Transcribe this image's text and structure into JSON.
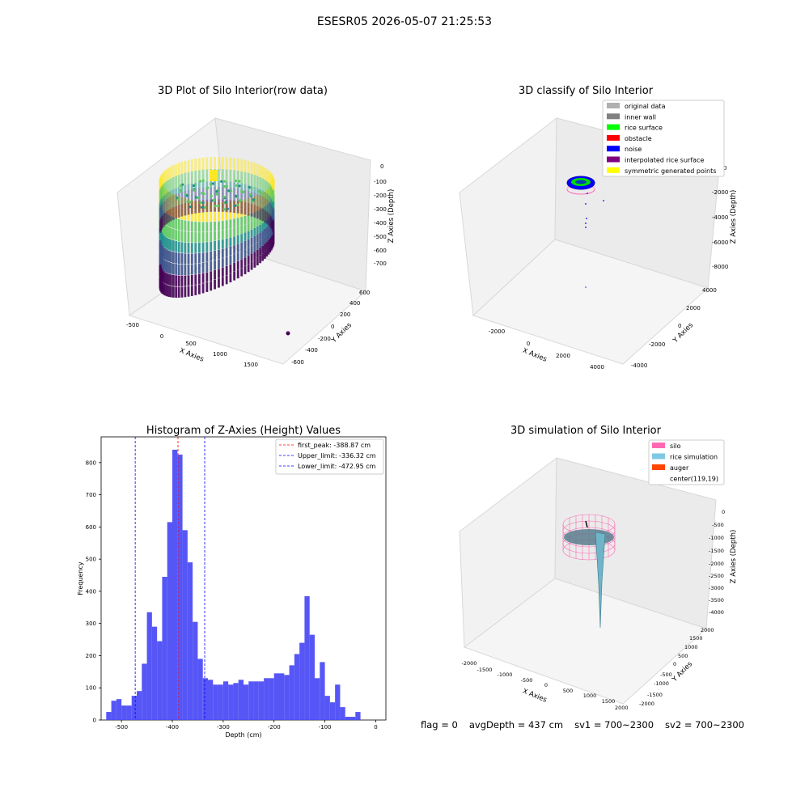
{
  "figure_title": "ESESR05 2026-05-07 21:25:53",
  "footer": {
    "flag": "flag = 0",
    "avg_depth": "avgDepth = 437 cm",
    "sv1": "sv1 = 700~2300",
    "sv2": "sv2 = 700~2300"
  },
  "panel1": {
    "title": "3D Plot of Silo Interior(row data)",
    "xlabel": "X Axies",
    "ylabel": "Y Axies",
    "zlabel": "Z Axies (Depth)",
    "x_ticks": [
      "-500",
      "0",
      "500",
      "1000",
      "1500"
    ],
    "y_ticks": [
      "-600",
      "-400",
      "-200",
      "0",
      "200",
      "400",
      "600"
    ],
    "z_ticks": [
      "0",
      "-100",
      "-200",
      "-300",
      "-400",
      "-500",
      "-600",
      "-700"
    ],
    "colormap": [
      "#440154",
      "#3b528b",
      "#21918c",
      "#5ec962",
      "#fde725"
    ]
  },
  "panel2": {
    "title": "3D classify of Silo Interior",
    "xlabel": "X Axies",
    "ylabel": "Y Axies",
    "zlabel": "Z Axies (Depth)",
    "x_ticks": [
      "-2000",
      "0",
      "2000",
      "4000"
    ],
    "y_ticks": [
      "-4000",
      "-2000",
      "0",
      "2000",
      "4000"
    ],
    "z_ticks": [
      "0",
      "-2000",
      "-4000",
      "-6000",
      "-8000"
    ],
    "legend": [
      {
        "label": "original data",
        "color": "#b0b0b0"
      },
      {
        "label": "inner wall",
        "color": "#808080"
      },
      {
        "label": "rice surface",
        "color": "#00ff00"
      },
      {
        "label": "obstacle",
        "color": "#ff0000"
      },
      {
        "label": "noise",
        "color": "#0000ff"
      },
      {
        "label": "interpolated rice surface",
        "color": "#800080"
      },
      {
        "label": "symmetric generated points",
        "color": "#ffff00"
      }
    ]
  },
  "panel4": {
    "title": "3D simulation of Silo Interior",
    "xlabel": "X Axies",
    "ylabel": "Y Axies",
    "zlabel": "Z Axies (Depth)",
    "x_ticks": [
      "-2000",
      "-1500",
      "-1000",
      "-500",
      "0",
      "500",
      "1000",
      "1500",
      "2000"
    ],
    "y_ticks": [
      "-2000",
      "-1500",
      "-1000",
      "-500",
      "0",
      "500",
      "1000",
      "1500",
      "2000"
    ],
    "z_ticks": [
      "0",
      "-500",
      "-1000",
      "-1500",
      "-2000",
      "-2500",
      "-3000",
      "-3500",
      "-4000"
    ],
    "legend": [
      {
        "label": "silo",
        "color": "#ff69b4"
      },
      {
        "label": "rice simulation",
        "color": "#7ec8e3"
      },
      {
        "label": "auger",
        "color": "#ff4500"
      },
      {
        "label": "center(119,19)",
        "color": ""
      }
    ]
  },
  "chart_data": {
    "type": "bar",
    "title": "Histogram of Z-Axies (Height) Values",
    "xlabel": "Depth (cm)",
    "ylabel": "Frequency",
    "xlim": [
      -540,
      20
    ],
    "ylim": [
      0,
      880
    ],
    "x_ticks": [
      -500,
      -400,
      -300,
      -200,
      -100,
      0
    ],
    "y_ticks": [
      0,
      100,
      200,
      300,
      400,
      500,
      600,
      700,
      800
    ],
    "bin_start": -530,
    "bin_width": 10,
    "color": "#4d4df7",
    "values": [
      25,
      60,
      65,
      45,
      45,
      75,
      90,
      175,
      335,
      290,
      245,
      445,
      615,
      840,
      825,
      590,
      490,
      305,
      190,
      130,
      125,
      110,
      110,
      120,
      110,
      115,
      125,
      110,
      120,
      120,
      120,
      130,
      130,
      145,
      145,
      140,
      170,
      205,
      240,
      385,
      265,
      130,
      180,
      75,
      55,
      110,
      40,
      10,
      10,
      25
    ],
    "lines": [
      {
        "label": "first_peak: -388.87 cm",
        "x": -388.87,
        "color": "#ff0000"
      },
      {
        "label": "Upper_limit: -336.32 cm",
        "x": -336.32,
        "color": "#0000ff"
      },
      {
        "label": "Lower_limit: -472.95 cm",
        "x": -472.95,
        "color": "#0000ff"
      }
    ]
  }
}
